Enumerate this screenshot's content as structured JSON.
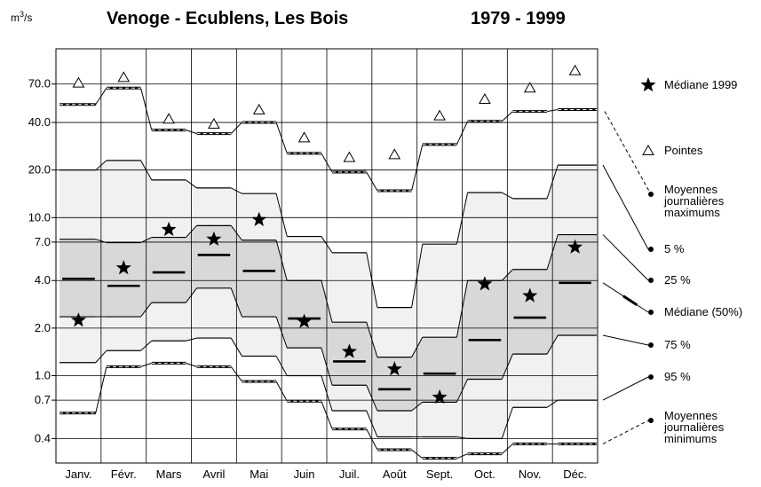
{
  "chart_data": {
    "type": "regime",
    "unit_base": "m",
    "unit_sup": "3",
    "unit_rest": "/s",
    "title": "Venoge - Ecublens, Les Bois",
    "period": "1979 - 1999",
    "categories": [
      "Janv.",
      "Févr.",
      "Mars",
      "Avril",
      "Mai",
      "Juin",
      "Juil.",
      "Août",
      "Sept.",
      "Oct.",
      "Nov.",
      "Déc."
    ],
    "log_scale": true,
    "ylim": [
      0.28,
      117
    ],
    "yticks": [
      {
        "value": 70,
        "label": "70.0"
      },
      {
        "value": 40,
        "label": "40.0"
      },
      {
        "value": 20,
        "label": "20.0"
      },
      {
        "value": 10,
        "label": "10.0"
      },
      {
        "value": 7,
        "label": "7.0"
      },
      {
        "value": 4,
        "label": "4.0"
      },
      {
        "value": 2,
        "label": "2.0"
      },
      {
        "value": 1,
        "label": "1.0"
      },
      0.7,
      0.4
    ],
    "grid": true,
    "bands": [
      {
        "series": [
          3,
          7
        ],
        "color": "#f1f1f1"
      },
      {
        "series": [
          4,
          6
        ],
        "color": "#d8d8d8"
      }
    ],
    "series": [
      {
        "name": "Médiane  1999",
        "kind": "marker",
        "marker": "star",
        "color": "#000000",
        "values": [
          2.24,
          4.8,
          8.4,
          7.3,
          9.7,
          2.2,
          1.42,
          1.1,
          0.73,
          3.8,
          3.2,
          6.5
        ]
      },
      {
        "name": "Pointes",
        "kind": "marker",
        "marker": "triangle",
        "color": "#000000",
        "values": [
          71,
          77,
          42,
          39,
          48,
          32,
          24,
          25,
          44,
          56,
          66,
          85
        ]
      },
      {
        "name": "Moyennes journalières maximums",
        "kind": "step",
        "style": "double",
        "color": "#000000",
        "values": [
          52,
          66,
          35.8,
          34,
          40,
          25.5,
          19.4,
          14.8,
          29,
          40.7,
          47,
          48.3
        ]
      },
      {
        "name": "5 %",
        "kind": "step",
        "color": "#000000",
        "values": [
          20,
          23,
          17.3,
          15.4,
          14.2,
          7.6,
          6.0,
          2.7,
          6.8,
          14.4,
          13.2,
          21.5
        ]
      },
      {
        "name": "25 %",
        "kind": "step",
        "color": "#000000",
        "values": [
          7.3,
          6.95,
          7.5,
          8.9,
          7.2,
          4.0,
          2.18,
          1.31,
          1.75,
          4.0,
          4.7,
          7.8
        ]
      },
      {
        "name": "Médiane (50%)",
        "kind": "bar",
        "color": "#000000",
        "values": [
          4.1,
          3.7,
          4.5,
          5.8,
          4.6,
          2.3,
          1.23,
          0.82,
          1.03,
          1.68,
          2.33,
          3.87
        ]
      },
      {
        "name": "75 %",
        "kind": "step",
        "color": "#000000",
        "values": [
          2.36,
          2.36,
          2.9,
          3.58,
          2.36,
          1.5,
          0.87,
          0.6,
          0.68,
          0.95,
          1.37,
          1.8
        ]
      },
      {
        "name": "95 %",
        "kind": "step",
        "color": "#000000",
        "values": [
          1.21,
          1.44,
          1.66,
          1.73,
          1.33,
          1.0,
          0.6,
          0.41,
          0.41,
          0.4,
          0.63,
          0.7
        ]
      },
      {
        "name": "Moyennes journalières minimums",
        "kind": "step",
        "style": "double",
        "color": "#000000",
        "values": [
          0.58,
          1.14,
          1.2,
          1.14,
          0.92,
          0.69,
          0.46,
          0.34,
          0.3,
          0.32,
          0.37,
          0.37
        ]
      }
    ]
  }
}
